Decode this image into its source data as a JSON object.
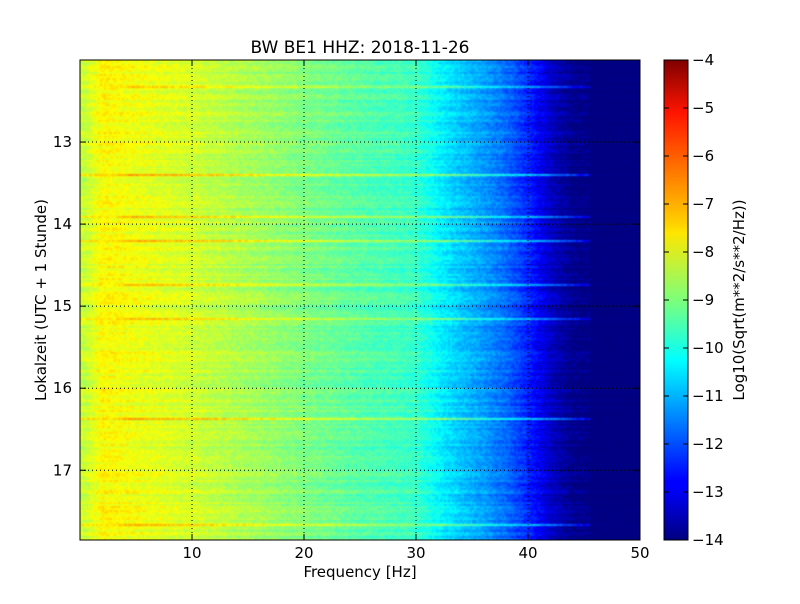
{
  "chart_data": {
    "type": "heatmap",
    "title": "BW BE1 HHZ: 2018-11-26",
    "xlabel": "Frequency [Hz]",
    "ylabel": "Lokalzeit (UTC + 1 Stunde)",
    "xlim": [
      0,
      50
    ],
    "ylim": [
      17.85,
      12.0
    ],
    "x_ticks": [
      10,
      20,
      30,
      40,
      50
    ],
    "x_tick_labels": [
      "10",
      "20",
      "30",
      "40",
      "50"
    ],
    "y_ticks": [
      13,
      14,
      15,
      16,
      17
    ],
    "y_tick_labels": [
      "13",
      "14",
      "15",
      "16",
      "17"
    ],
    "grid": true,
    "colormap": "jet",
    "colorbar": {
      "label": "Log10(Sqrt(m**2/s**2/Hz))",
      "range": [
        -14,
        -4
      ],
      "ticks": [
        -4,
        -5,
        -6,
        -7,
        -8,
        -9,
        -10,
        -11,
        -12,
        -13,
        -14
      ],
      "tick_labels": [
        "−4",
        "−5",
        "−6",
        "−7",
        "−8",
        "−9",
        "−10",
        "−11",
        "−12",
        "−13",
        "−14"
      ]
    },
    "spectrum_profile": {
      "frequency_hz": [
        0.5,
        2,
        5,
        10,
        15,
        20,
        25,
        30,
        32,
        34,
        36,
        38,
        40,
        42,
        44,
        46,
        50
      ],
      "log10_amplitude": [
        -8.3,
        -7.7,
        -7.9,
        -8.2,
        -8.6,
        -9.0,
        -9.4,
        -9.7,
        -10.3,
        -10.8,
        -11.2,
        -11.7,
        -12.4,
        -13.3,
        -13.9,
        -14.0,
        -14.0
      ]
    },
    "bright_lines_hour": [
      12.31,
      13.4,
      13.92,
      14.2,
      14.75,
      15.15,
      16.37,
      17.67
    ],
    "accent_colors": {
      "axes": "#000000",
      "grid": "#000000"
    }
  }
}
